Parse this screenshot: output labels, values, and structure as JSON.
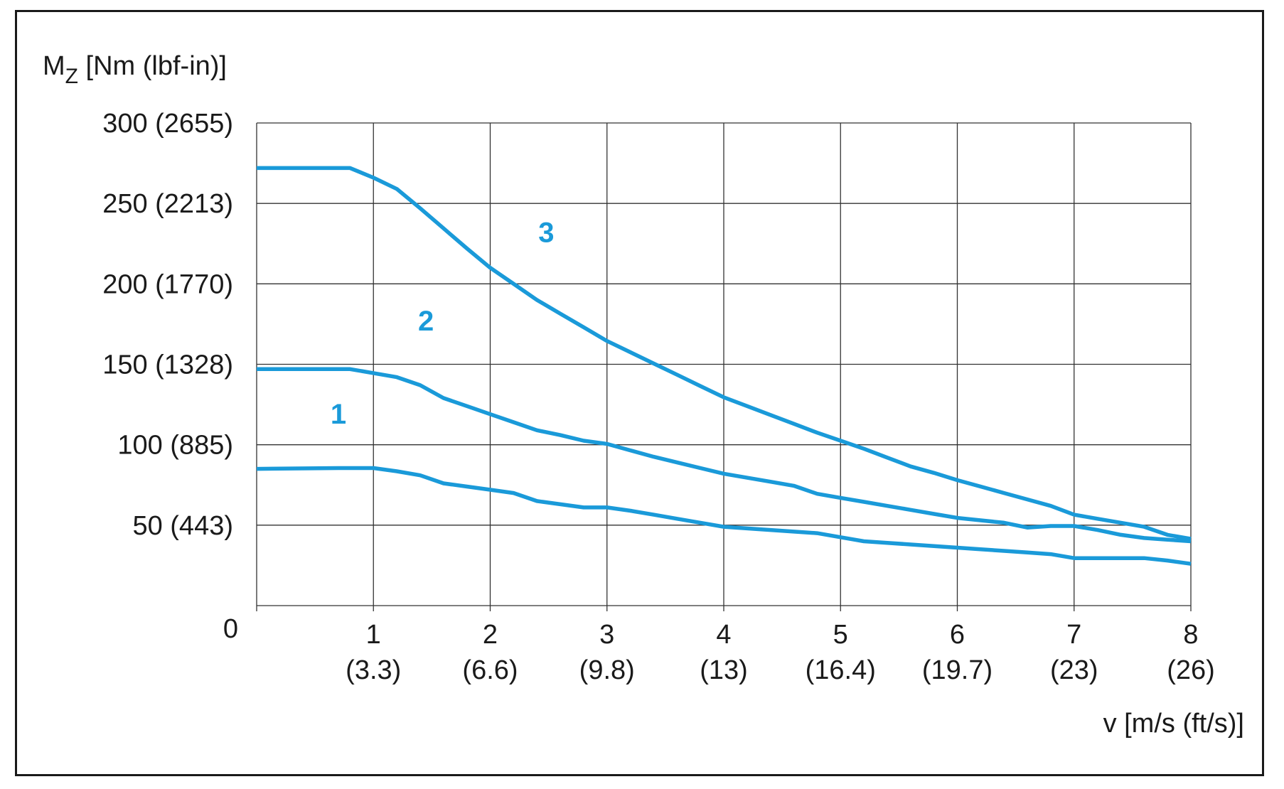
{
  "chart_data": {
    "type": "line",
    "ylabel": {
      "main": "M",
      "sub": "Z",
      "rest": " [Nm (lbf-in)]"
    },
    "xlabel": "v [m/s (ft/s)]",
    "xlim": [
      0,
      8
    ],
    "ylim": [
      0,
      300
    ],
    "x_ticks": [
      {
        "value": 1,
        "label": "1",
        "sublabel": "(3.3)"
      },
      {
        "value": 2,
        "label": "2",
        "sublabel": "(6.6)"
      },
      {
        "value": 3,
        "label": "3",
        "sublabel": "(9.8)"
      },
      {
        "value": 4,
        "label": "4",
        "sublabel": "(13)"
      },
      {
        "value": 5,
        "label": "5",
        "sublabel": "(16.4)"
      },
      {
        "value": 6,
        "label": "6",
        "sublabel": "(19.7)"
      },
      {
        "value": 7,
        "label": "7",
        "sublabel": "(23)"
      },
      {
        "value": 8,
        "label": "8",
        "sublabel": "(26)"
      }
    ],
    "y_ticks": [
      {
        "value": 0,
        "label": "0"
      },
      {
        "value": 50,
        "label": "50 (443)"
      },
      {
        "value": 100,
        "label": "100 (885)"
      },
      {
        "value": 150,
        "label": "150 (1328)"
      },
      {
        "value": 200,
        "label": "200 (1770)"
      },
      {
        "value": 250,
        "label": "250 (2213)"
      },
      {
        "value": 300,
        "label": "300 (2655)"
      }
    ],
    "grid": true,
    "line_color": "#1a9ad9",
    "series": [
      {
        "name": "1",
        "label_at": [
          0.7,
          113
        ],
        "x": [
          0,
          0.7,
          1.0,
          1.2,
          1.4,
          1.6,
          1.8,
          2.0,
          2.2,
          2.4,
          2.6,
          2.8,
          3.0,
          3.2,
          3.4,
          3.6,
          3.8,
          4.0,
          4.2,
          4.4,
          4.6,
          4.8,
          5.0,
          5.2,
          5.4,
          5.6,
          5.8,
          6.0,
          6.2,
          6.4,
          6.6,
          6.8,
          7.0,
          7.2,
          7.4,
          7.6,
          7.8,
          8.0
        ],
        "y": [
          85,
          85.5,
          85.5,
          83.5,
          81,
          76,
          74,
          72,
          70,
          65,
          63,
          61,
          61,
          59,
          56.5,
          54,
          51.5,
          49,
          48,
          47,
          46,
          45,
          42.5,
          40,
          39,
          38,
          37,
          36,
          35,
          34,
          33,
          32,
          29.5,
          29.5,
          29.5,
          29.5,
          28,
          26
        ]
      },
      {
        "name": "2",
        "label_at": [
          1.45,
          171
        ],
        "x": [
          0,
          0.8,
          1.0,
          1.2,
          1.4,
          1.6,
          1.8,
          2.0,
          2.2,
          2.4,
          2.6,
          2.8,
          3.0,
          3.2,
          3.4,
          3.6,
          3.8,
          4.0,
          4.2,
          4.4,
          4.6,
          4.8,
          5.0,
          5.2,
          5.4,
          5.6,
          5.8,
          6.0,
          6.2,
          6.4,
          6.6,
          6.8,
          7.0,
          7.2,
          7.4,
          7.6,
          7.8,
          8.0
        ],
        "y": [
          147,
          147,
          144.5,
          142,
          137,
          129,
          124,
          119,
          114,
          109,
          106,
          102.5,
          100.5,
          96.5,
          92.5,
          89,
          85.5,
          82,
          79.5,
          77,
          74.5,
          69.5,
          67,
          64.5,
          62,
          59.5,
          57,
          54.5,
          53,
          51.5,
          48.5,
          49.5,
          49.5,
          47,
          44,
          42,
          41,
          40
        ]
      },
      {
        "name": "3",
        "label_at": [
          2.48,
          226
        ],
        "x": [
          0,
          0.8,
          1.0,
          1.2,
          1.4,
          1.6,
          1.8,
          2.0,
          2.2,
          2.4,
          2.6,
          2.8,
          3.0,
          3.2,
          3.4,
          3.6,
          3.8,
          4.0,
          4.2,
          4.4,
          4.6,
          4.8,
          5.0,
          5.2,
          5.4,
          5.6,
          5.8,
          6.0,
          6.2,
          6.4,
          6.6,
          6.8,
          7.0,
          7.2,
          7.4,
          7.6,
          7.8,
          8.0
        ],
        "y": [
          272,
          272,
          266,
          259,
          247,
          234.5,
          222,
          210,
          200,
          190,
          181.5,
          173,
          164.5,
          157.5,
          150.5,
          143.5,
          136.5,
          129.5,
          124,
          118.5,
          113,
          107.5,
          102.5,
          97.5,
          92,
          86.5,
          82.5,
          78,
          74,
          70,
          66,
          62,
          56.5,
          54,
          51.5,
          49,
          44,
          41.5
        ]
      }
    ]
  }
}
